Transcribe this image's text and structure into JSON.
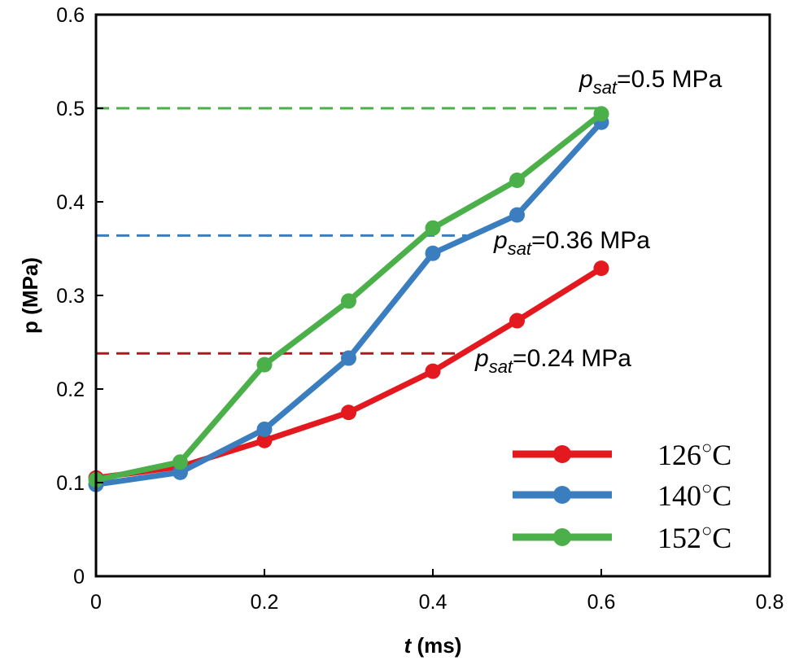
{
  "chart_data": {
    "type": "line",
    "xlabel_var": "t",
    "xlabel_unit": " (ms)",
    "ylabel": "p (MPa)",
    "xlim": [
      0,
      0.8
    ],
    "ylim": [
      0,
      0.6
    ],
    "x_ticks": [
      0,
      0.2,
      0.4,
      0.6,
      0.8
    ],
    "x_tick_labels": [
      "0",
      "0.2",
      "0.4",
      "0.6",
      "0.8"
    ],
    "y_ticks": [
      0,
      0.1,
      0.2,
      0.3,
      0.4,
      0.5,
      0.6
    ],
    "y_tick_labels": [
      "0",
      "0.1",
      "0.2",
      "0.3",
      "0.4",
      "0.5",
      "0.6"
    ],
    "x": [
      0,
      0.1,
      0.2,
      0.3,
      0.4,
      0.5,
      0.6
    ],
    "series": [
      {
        "name": "126°C",
        "color": "#e3191f",
        "values": [
          0.105,
          0.117,
          0.145,
          0.175,
          0.219,
          0.273,
          0.329
        ]
      },
      {
        "name": "140°C",
        "color": "#3a7ebf",
        "values": [
          0.098,
          0.111,
          0.157,
          0.233,
          0.345,
          0.386,
          0.485
        ]
      },
      {
        "name": "152°C",
        "color": "#4cb04a",
        "values": [
          0.103,
          0.122,
          0.226,
          0.294,
          0.372,
          0.423,
          0.494
        ]
      }
    ],
    "reference_lines": [
      {
        "y": 0.5,
        "color": "#4cb04a",
        "x_end": 0.6,
        "label_prefix": "p",
        "label_sub": "sat",
        "label_value": "=0.5 MPa"
      },
      {
        "y": 0.364,
        "color": "#3a7ebf",
        "x_end": 0.44,
        "label_prefix": "p",
        "label_sub": "sat",
        "label_value": "=0.36 MPa"
      },
      {
        "y": 0.238,
        "color": "#b0181f",
        "x_end": 0.44,
        "label_prefix": "p",
        "label_sub": "sat",
        "label_value": "=0.24 MPa"
      }
    ],
    "legend": {
      "placement": "bottom-right",
      "entries": [
        {
          "number": "126",
          "degree": "○",
          "unit": "C"
        },
        {
          "number": "140",
          "degree": "○",
          "unit": "C"
        },
        {
          "number": "152",
          "degree": "○",
          "unit": "C"
        }
      ]
    }
  }
}
